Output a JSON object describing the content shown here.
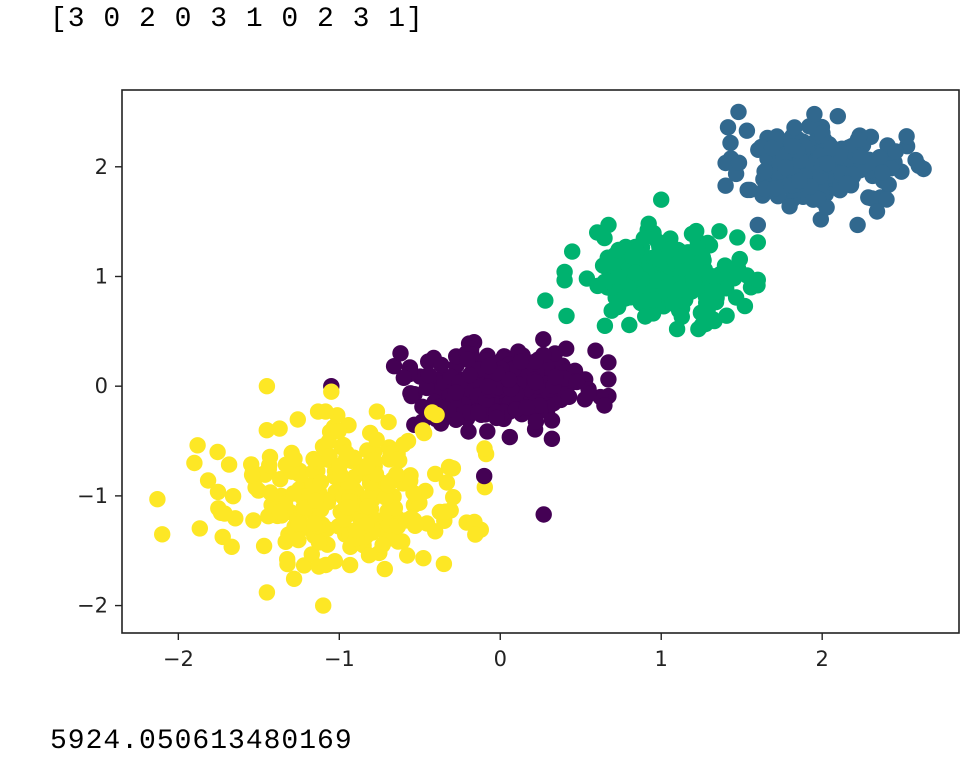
{
  "output": {
    "labels_line": "[3 0 2 0 3 1 0 2 3 1]",
    "score_line": "5924.050613480169"
  },
  "chart_data": {
    "type": "scatter",
    "title": "",
    "xlabel": "",
    "ylabel": "",
    "xlim": [
      -2.35,
      2.85
    ],
    "ylim": [
      -2.25,
      2.7
    ],
    "xticks": [
      -2,
      -1,
      0,
      1,
      2
    ],
    "yticks": [
      -2,
      -1,
      0,
      1,
      2
    ],
    "xtick_labels": [
      "−2",
      "−1",
      "0",
      "1",
      "2"
    ],
    "ytick_labels": [
      "−2",
      "−1",
      "0",
      "1",
      "2"
    ],
    "grid": false,
    "colormap": "viridis",
    "clusters": [
      {
        "label": 0,
        "color": "#440154",
        "center": [
          0.0,
          0.0
        ],
        "spread": [
          0.28,
          0.2
        ],
        "count": 230
      },
      {
        "label": 1,
        "color": "#31688e",
        "center": [
          2.0,
          2.0
        ],
        "spread": [
          0.25,
          0.2
        ],
        "count": 230
      },
      {
        "label": 2,
        "color": "#00b26f",
        "center": [
          1.0,
          1.0
        ],
        "spread": [
          0.25,
          0.2
        ],
        "count": 230
      },
      {
        "label": 3,
        "color": "#fde725",
        "center": [
          -1.0,
          -1.0
        ],
        "spread": [
          0.38,
          0.32
        ],
        "count": 260
      }
    ],
    "notable_points": [
      {
        "x": 1.0,
        "y": 1.7,
        "cluster": 2
      },
      {
        "x": 0.28,
        "y": 0.78,
        "cluster": 2
      },
      {
        "x": 1.6,
        "y": 0.97,
        "cluster": 2
      },
      {
        "x": 1.52,
        "y": 0.73,
        "cluster": 2
      },
      {
        "x": 0.65,
        "y": 0.55,
        "cluster": 2
      },
      {
        "x": 0.27,
        "y": -1.17,
        "cluster": 0
      },
      {
        "x": -0.62,
        "y": 0.3,
        "cluster": 0
      },
      {
        "x": -1.05,
        "y": 0.0,
        "cluster": 0
      },
      {
        "x": 0.55,
        "y": -0.07,
        "cluster": 0
      },
      {
        "x": -0.1,
        "y": -0.82,
        "cluster": 0
      },
      {
        "x": 2.63,
        "y": 1.98,
        "cluster": 1
      },
      {
        "x": 1.48,
        "y": 2.5,
        "cluster": 1
      },
      {
        "x": 1.6,
        "y": 1.47,
        "cluster": 1
      },
      {
        "x": 2.22,
        "y": 1.47,
        "cluster": 1
      },
      {
        "x": -2.1,
        "y": -1.35,
        "cluster": 3
      },
      {
        "x": -2.13,
        "y": -1.03,
        "cluster": 3
      },
      {
        "x": -1.9,
        "y": -0.7,
        "cluster": 3
      },
      {
        "x": -1.45,
        "y": -1.88,
        "cluster": 3
      },
      {
        "x": -1.1,
        "y": -2.0,
        "cluster": 3
      },
      {
        "x": -0.35,
        "y": -1.62,
        "cluster": 3
      },
      {
        "x": -1.45,
        "y": 0.0,
        "cluster": 3
      },
      {
        "x": -1.05,
        "y": -0.05,
        "cluster": 3
      }
    ]
  }
}
